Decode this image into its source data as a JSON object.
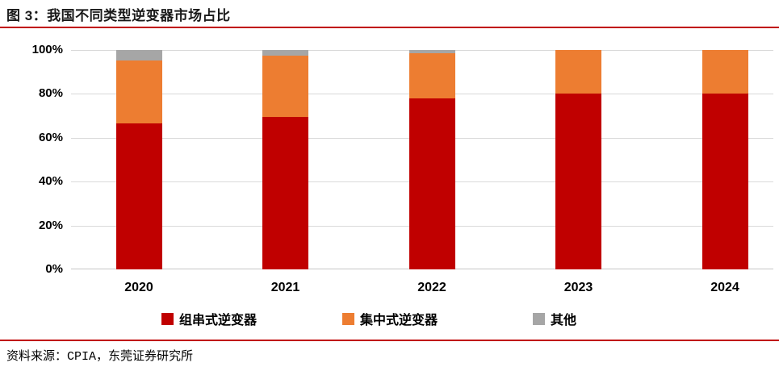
{
  "header": {
    "title": "图 3：我国不同类型逆变器市场占比"
  },
  "footer": {
    "source": "资料来源：CPIA，东莞证券研究所"
  },
  "colors": {
    "accent_rule": "#C00000",
    "grid": "#D9D9D9",
    "axis": "#C6C6C6",
    "text": "#000000"
  },
  "chart_data": {
    "type": "bar",
    "stacked": true,
    "title": "我国不同类型逆变器市场占比",
    "categories": [
      "2020",
      "2021",
      "2022",
      "2023",
      "2024"
    ],
    "series": [
      {
        "name": "组串式逆变器",
        "color": "#C00000",
        "values": [
          66.5,
          69.6,
          78.0,
          80.0,
          80.0
        ]
      },
      {
        "name": "集中式逆变器",
        "color": "#ED7D31",
        "values": [
          28.8,
          27.7,
          20.5,
          20.0,
          20.0
        ]
      },
      {
        "name": "其他",
        "color": "#A6A6A6",
        "values": [
          4.7,
          2.7,
          1.5,
          0.0,
          0.0
        ]
      }
    ],
    "ylim": [
      0,
      100
    ],
    "yticks": [
      "0%",
      "20%",
      "40%",
      "60%",
      "80%",
      "100%"
    ],
    "ytick_values": [
      0,
      20,
      40,
      60,
      80,
      100
    ],
    "grid": true,
    "legend_position": "bottom"
  }
}
